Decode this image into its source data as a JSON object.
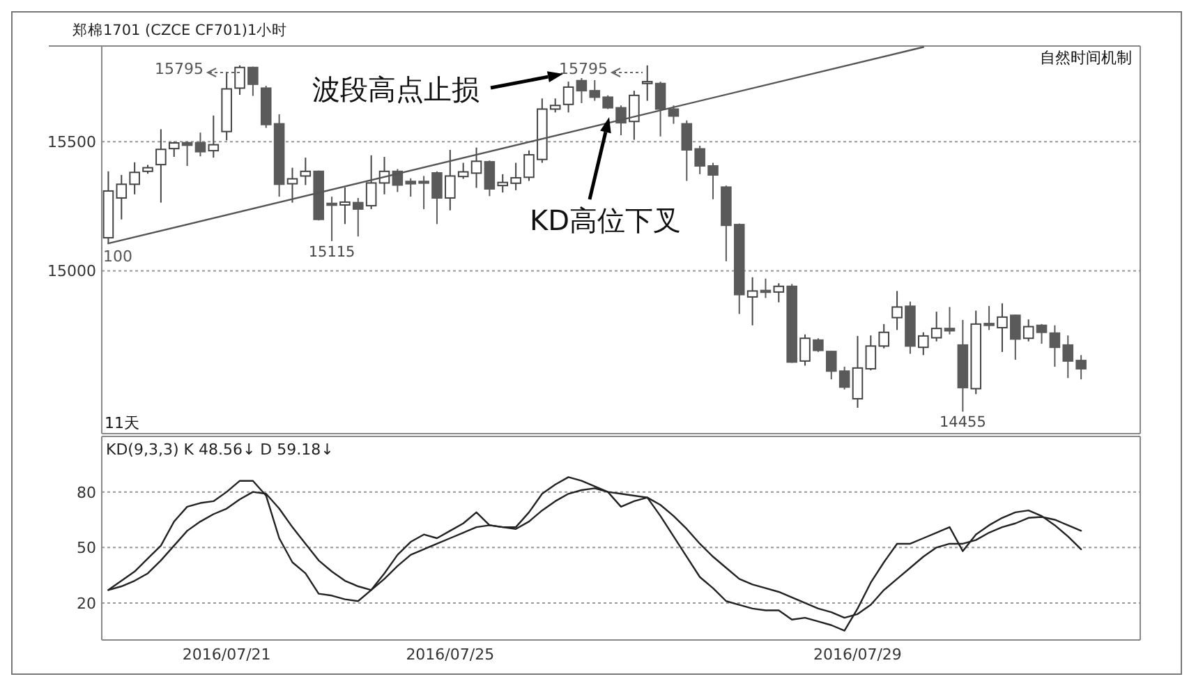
{
  "chart_data": [
    {
      "type": "candlestick",
      "title": "郑棉1701 (CZCE CF701)1小时",
      "categories": [
        null,
        null,
        null,
        null,
        null,
        null,
        null,
        null,
        null,
        null,
        null,
        null,
        null,
        null,
        null,
        null,
        null,
        null,
        null,
        null,
        null,
        null,
        null,
        null,
        null,
        null,
        null,
        null,
        null,
        null,
        null,
        null,
        null,
        null,
        null,
        null,
        null,
        null,
        null,
        null,
        null,
        null,
        null,
        null,
        null,
        null,
        null,
        null,
        null,
        null,
        null,
        null,
        null,
        null,
        null,
        null,
        null,
        null,
        null,
        null,
        null,
        null,
        null,
        null,
        null,
        null,
        null,
        null,
        null,
        null,
        null,
        null,
        null,
        null,
        null
      ],
      "ohlc": [
        [
          15128,
          15385,
          15105,
          15309
        ],
        [
          15282,
          15371,
          15199,
          15335
        ],
        [
          15335,
          15420,
          15296,
          15381
        ],
        [
          15385,
          15410,
          15376,
          15399
        ],
        [
          15411,
          15548,
          15264,
          15470
        ],
        [
          15473,
          15500,
          15441,
          15495
        ],
        [
          15496,
          15500,
          15406,
          15486
        ],
        [
          15496,
          15535,
          15443,
          15461
        ],
        [
          15465,
          15601,
          15438,
          15488
        ],
        [
          15539,
          15766,
          15505,
          15704
        ],
        [
          15707,
          15795,
          15681,
          15787
        ],
        [
          15787,
          15790,
          15677,
          15722
        ],
        [
          15707,
          15716,
          15553,
          15566
        ],
        [
          15569,
          15606,
          15287,
          15335
        ],
        [
          15337,
          15399,
          15264,
          15356
        ],
        [
          15367,
          15438,
          15332,
          15385
        ],
        [
          15385,
          15388,
          15195,
          15199
        ],
        [
          15261,
          15287,
          15115,
          15254
        ],
        [
          15255,
          15323,
          15181,
          15266
        ],
        [
          15264,
          15282,
          15133,
          15239
        ],
        [
          15252,
          15447,
          15239,
          15340
        ],
        [
          15340,
          15441,
          15296,
          15385
        ],
        [
          15385,
          15394,
          15305,
          15332
        ],
        [
          15346,
          15358,
          15287,
          15337
        ],
        [
          15346,
          15367,
          15239,
          15340
        ],
        [
          15379,
          15385,
          15181,
          15282
        ],
        [
          15282,
          15468,
          15234,
          15367
        ],
        [
          15365,
          15418,
          15356,
          15383
        ],
        [
          15378,
          15477,
          15321,
          15424
        ],
        [
          15422,
          15427,
          15289,
          15317
        ],
        [
          15330,
          15374,
          15303,
          15342
        ],
        [
          15339,
          15418,
          15312,
          15360
        ],
        [
          15362,
          15466,
          15348,
          15449
        ],
        [
          15431,
          15667,
          15418,
          15626
        ],
        [
          15626,
          15667,
          15613,
          15640
        ],
        [
          15644,
          15732,
          15613,
          15711
        ],
        [
          15736,
          15746,
          15649,
          15697
        ],
        [
          15697,
          15738,
          15658,
          15672
        ],
        [
          15672,
          15679,
          15626,
          15631
        ],
        [
          15631,
          15640,
          15525,
          15573
        ],
        [
          15578,
          15697,
          15507,
          15679
        ],
        [
          15725,
          15795,
          15658,
          15732
        ],
        [
          15725,
          15732,
          15520,
          15626
        ],
        [
          15626,
          15640,
          15569,
          15599
        ],
        [
          15569,
          15582,
          15348,
          15468
        ],
        [
          15472,
          15484,
          15374,
          15406
        ],
        [
          15406,
          15418,
          15277,
          15371
        ],
        [
          15324,
          15330,
          15037,
          15176
        ],
        [
          15179,
          15183,
          14833,
          14908
        ],
        [
          14899,
          14975,
          14789,
          14922
        ],
        [
          14924,
          14970,
          14895,
          14917
        ],
        [
          14918,
          14952,
          14878,
          14940
        ],
        [
          14940,
          14949,
          14644,
          14647
        ],
        [
          14651,
          14754,
          14633,
          14739
        ],
        [
          14732,
          14739,
          14686,
          14692
        ],
        [
          14688,
          14690,
          14580,
          14612
        ],
        [
          14612,
          14629,
          14541,
          14550
        ],
        [
          14505,
          14748,
          14470,
          14624
        ],
        [
          14621,
          14750,
          14615,
          14709
        ],
        [
          14709,
          14794,
          14700,
          14762
        ],
        [
          14819,
          14922,
          14771,
          14860
        ],
        [
          14863,
          14881,
          14679,
          14709
        ],
        [
          14704,
          14762,
          14674,
          14748
        ],
        [
          14741,
          14842,
          14727,
          14777
        ],
        [
          14777,
          14860,
          14754,
          14768
        ],
        [
          14713,
          14810,
          14455,
          14548
        ],
        [
          14544,
          14846,
          14523,
          14794
        ],
        [
          14796,
          14864,
          14771,
          14789
        ],
        [
          14780,
          14874,
          14686,
          14821
        ],
        [
          14828,
          14830,
          14656,
          14736
        ],
        [
          14739,
          14812,
          14727,
          14784
        ],
        [
          14789,
          14794,
          14718,
          14762
        ],
        [
          14759,
          14789,
          14629,
          14704
        ],
        [
          14713,
          14750,
          14585,
          14651
        ],
        [
          14653,
          14674,
          14580,
          14621
        ]
      ],
      "colors": [
        "#ffffff",
        "#ffffff",
        "#ffffff",
        "#ffffff",
        "#ffffff",
        "#ffffff",
        "#5a5a5a",
        "#5a5a5a",
        "#ffffff",
        "#ffffff",
        "#ffffff",
        "#5a5a5a",
        "#5a5a5a",
        "#5a5a5a",
        "#ffffff",
        "#ffffff",
        "#5a5a5a",
        "#5a5a5a",
        "#ffffff",
        "#5a5a5a",
        "#ffffff",
        "#ffffff",
        "#5a5a5a",
        "#5a5a5a",
        "#5a5a5a",
        "#5a5a5a",
        "#ffffff",
        "#ffffff",
        "#ffffff",
        "#5a5a5a",
        "#ffffff",
        "#ffffff",
        "#ffffff",
        "#ffffff",
        "#ffffff",
        "#ffffff",
        "#5a5a5a",
        "#5a5a5a",
        "#5a5a5a",
        "#5a5a5a",
        "#ffffff",
        "#ffffff",
        "#5a5a5a",
        "#5a5a5a",
        "#5a5a5a",
        "#5a5a5a",
        "#5a5a5a",
        "#5a5a5a",
        "#5a5a5a",
        "#ffffff",
        "#5a5a5a",
        "#ffffff",
        "#5a5a5a",
        "#ffffff",
        "#5a5a5a",
        "#5a5a5a",
        "#5a5a5a",
        "#ffffff",
        "#ffffff",
        "#ffffff",
        "#ffffff",
        "#5a5a5a",
        "#ffffff",
        "#ffffff",
        "#5a5a5a",
        "#5a5a5a",
        "#ffffff",
        "#5a5a5a",
        "#ffffff",
        "#5a5a5a",
        "#ffffff",
        "#5a5a5a",
        "#5a5a5a",
        "#5a5a5a",
        "#5a5a5a"
      ],
      "ylim": [
        14370,
        15870
      ],
      "yticks": [
        15000,
        15500
      ],
      "grid": "y",
      "tick_labels": "y",
      "series": [
        {
          "type": "line",
          "values": [
            15106,
            null,
            null,
            null,
            null,
            null,
            null,
            null,
            null,
            null,
            null,
            null,
            null,
            null,
            null,
            null,
            null,
            null,
            null,
            null,
            null,
            null,
            null,
            null,
            null,
            null,
            null,
            null,
            null,
            null,
            null,
            null,
            null,
            null,
            null,
            null,
            null,
            null,
            null,
            null,
            null,
            null,
            null,
            null,
            null,
            null,
            null,
            null,
            null,
            null,
            null,
            null,
            null,
            null,
            null,
            null,
            null,
            null,
            null,
            null,
            null,
            null,
            15866,
            null,
            null,
            null,
            null,
            null,
            null,
            null,
            null,
            null,
            null,
            null,
            null
          ],
          "color": "#555555"
        }
      ],
      "annotations": [
        "15795",
        "15795",
        {
          "text": "15115",
          "y": 15115
        },
        {
          "text": "14455",
          "y": 14455
        },
        {
          "text": "100",
          "y": 15100
        },
        "波段高点止损",
        "KD高位下叉",
        "自然时间机制",
        "11天"
      ]
    },
    {
      "type": "line",
      "title": "KD(9,3,3)  K  48.56↓  D  59.18↓",
      "categories": [
        null,
        null,
        null,
        null,
        null,
        null,
        null,
        null,
        null,
        "2016/07/21",
        null,
        null,
        null,
        null,
        null,
        null,
        null,
        null,
        null,
        null,
        null,
        null,
        null,
        null,
        null,
        null,
        "2016/07/25",
        null,
        null,
        null,
        null,
        null,
        null,
        null,
        null,
        null,
        null,
        null,
        null,
        null,
        null,
        null,
        null,
        null,
        null,
        null,
        null,
        null,
        null,
        null,
        null,
        null,
        null,
        null,
        null,
        null,
        null,
        "2016/07/29",
        null,
        null,
        null,
        null,
        null,
        null,
        null,
        null,
        null,
        null,
        null,
        null,
        null,
        null,
        null,
        null,
        null
      ],
      "ylim": [
        0,
        110
      ],
      "yticks": [
        20,
        50,
        80
      ],
      "grid": "y",
      "series": [
        {
          "color": "#222222",
          "values": [
            27,
            32,
            37,
            44,
            51,
            64,
            72,
            74,
            75,
            80,
            86,
            86,
            78,
            55,
            42,
            36,
            25,
            24,
            22,
            21,
            27,
            36,
            46,
            53,
            57,
            55,
            59,
            63,
            69,
            62,
            61,
            61,
            69,
            79,
            84,
            88,
            86,
            83,
            80,
            72,
            75,
            77,
            67,
            56,
            45,
            34,
            28,
            21,
            19,
            17,
            16,
            16,
            11,
            12,
            10,
            8,
            5,
            17,
            31,
            42,
            52,
            52,
            55,
            58,
            61,
            48,
            57,
            62,
            66,
            69,
            70,
            67,
            62,
            56,
            49
          ]
        },
        {
          "color": "#222222",
          "values": [
            27,
            29,
            32,
            36,
            43,
            51,
            59,
            64,
            68,
            71,
            76,
            80,
            79,
            71,
            61,
            52,
            43,
            37,
            32,
            29,
            27,
            33,
            40,
            46,
            49,
            52,
            55,
            58,
            61,
            62,
            61,
            60,
            64,
            70,
            75,
            79,
            81,
            82,
            80,
            79,
            78,
            77,
            73,
            67,
            60,
            52,
            45,
            39,
            33,
            30,
            28,
            26,
            23,
            20,
            17,
            15,
            12,
            14,
            19,
            27,
            33,
            39,
            45,
            50,
            52,
            52,
            54,
            58,
            61,
            63,
            66,
            66.5,
            65,
            62,
            59
          ]
        }
      ]
    }
  ]
}
